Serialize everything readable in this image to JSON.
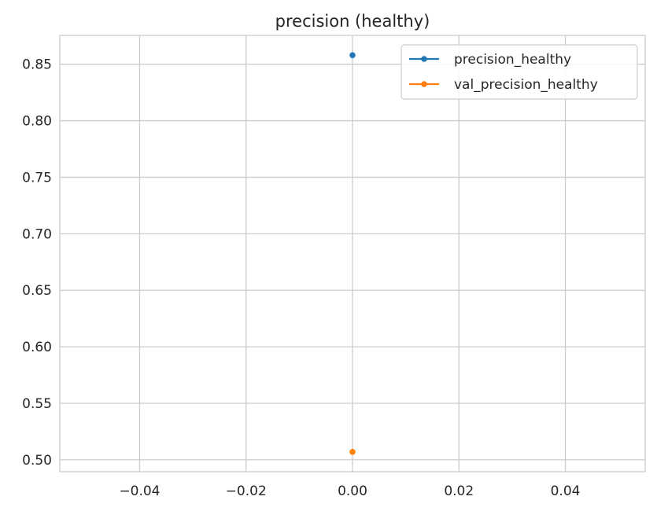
{
  "chart_data": {
    "type": "line",
    "title": "precision (healthy)",
    "xlabel": "",
    "ylabel": "",
    "xlim": [
      -0.055,
      0.055
    ],
    "ylim": [
      0.4895,
      0.8755
    ],
    "xticks": [
      -0.04,
      -0.02,
      0.0,
      0.02,
      0.04
    ],
    "xtick_labels": [
      "−0.04",
      "−0.02",
      "0.00",
      "0.02",
      "0.04"
    ],
    "yticks": [
      0.5,
      0.55,
      0.6,
      0.65,
      0.7,
      0.75,
      0.8,
      0.85
    ],
    "ytick_labels": [
      "0.50",
      "0.55",
      "0.60",
      "0.65",
      "0.70",
      "0.75",
      "0.80",
      "0.85"
    ],
    "grid": true,
    "legend_position": "top-right",
    "series": [
      {
        "name": "precision_healthy",
        "color": "#1f77b4",
        "x": [
          0
        ],
        "y": [
          0.858
        ]
      },
      {
        "name": "val_precision_healthy",
        "color": "#ff7f0e",
        "x": [
          0
        ],
        "y": [
          0.507
        ]
      }
    ]
  }
}
